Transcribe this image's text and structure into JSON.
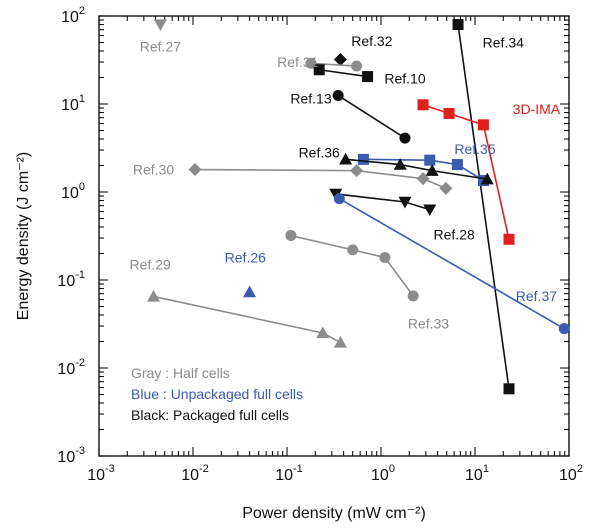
{
  "chart_data": {
    "type": "scatter",
    "title": "",
    "xlabel": "Power density (mW cm⁻²)",
    "ylabel": "Energy density (J cm⁻²)",
    "xscale": "log",
    "yscale": "log",
    "xlim": [
      0.001,
      100
    ],
    "ylim": [
      0.001,
      100
    ],
    "grid": false,
    "x_ticks": [
      {
        "value": 0.001,
        "base": "10",
        "exp": "-3"
      },
      {
        "value": 0.01,
        "base": "10",
        "exp": "-2"
      },
      {
        "value": 0.1,
        "base": "10",
        "exp": "-1"
      },
      {
        "value": 1,
        "base": "10",
        "exp": "0"
      },
      {
        "value": 10,
        "base": "10",
        "exp": "1"
      },
      {
        "value": 100,
        "base": "10",
        "exp": "2"
      }
    ],
    "y_ticks": [
      {
        "value": 0.001,
        "base": "10",
        "exp": "-3"
      },
      {
        "value": 0.01,
        "base": "10",
        "exp": "-2"
      },
      {
        "value": 0.1,
        "base": "10",
        "exp": "-1"
      },
      {
        "value": 1,
        "base": "10",
        "exp": "0"
      },
      {
        "value": 10,
        "base": "10",
        "exp": "1"
      },
      {
        "value": 100,
        "base": "10",
        "exp": "2"
      }
    ],
    "colors": {
      "gray": "#8c8c8c",
      "blue": "#3b5bb0",
      "black": "#111111",
      "red": "#e0201e"
    },
    "series": [
      {
        "label": "Ref.27",
        "color": "gray",
        "marker": "triangle-down",
        "points": [
          [
            0.0045,
            80
          ]
        ],
        "label_x": 0.0045,
        "label_y": 45,
        "label_color": "gray"
      },
      {
        "label": "Ref.32",
        "color": "black",
        "marker": "diamond",
        "points": [
          [
            0.37,
            32
          ]
        ],
        "label_x": 0.8,
        "label_y": 52,
        "label_color": "black"
      },
      {
        "label": "Ref.31",
        "color": "gray",
        "marker": "circle",
        "points": [
          [
            0.18,
            29
          ],
          [
            0.55,
            27
          ]
        ],
        "label_x": 0.13,
        "label_y": 30,
        "label_color": "gray"
      },
      {
        "label": "Ref.10",
        "color": "black",
        "marker": "square",
        "points": [
          [
            0.22,
            24.5
          ],
          [
            0.72,
            20.5
          ]
        ],
        "label_x": 1.8,
        "label_y": 19.5,
        "label_color": "black"
      },
      {
        "label": "Ref.13",
        "color": "black",
        "marker": "circle",
        "points": [
          [
            0.35,
            12.5
          ],
          [
            1.8,
            4.1
          ]
        ],
        "label_x": 0.18,
        "label_y": 11.5,
        "label_color": "black"
      },
      {
        "label": "Ref.34",
        "color": "black",
        "marker": "square",
        "points": [
          [
            6.6,
            80
          ],
          [
            23,
            0.0058
          ]
        ],
        "label_x": 20,
        "label_y": 50,
        "label_color": "black"
      },
      {
        "label": "3D-IMA",
        "color": "red",
        "marker": "square",
        "points": [
          [
            2.8,
            9.8
          ],
          [
            5.3,
            7.8
          ],
          [
            12.3,
            5.8
          ],
          [
            23,
            0.29
          ]
        ],
        "label_x": 45,
        "label_y": 8.8,
        "label_color": "red"
      },
      {
        "label": "Ref.35",
        "color": "blue",
        "marker": "square",
        "points": [
          [
            0.65,
            2.35
          ],
          [
            3.3,
            2.3
          ],
          [
            6.5,
            2.05
          ],
          [
            12.3,
            1.35
          ]
        ],
        "label_x": 10,
        "label_y": 3.1,
        "label_color": "blue"
      },
      {
        "label": "Ref.36",
        "color": "black",
        "marker": "triangle",
        "points": [
          [
            0.42,
            2.35
          ],
          [
            1.6,
            2.05
          ],
          [
            3.5,
            1.75
          ],
          [
            13.5,
            1.4
          ]
        ],
        "label_x": 0.22,
        "label_y": 2.8,
        "label_color": "black"
      },
      {
        "label": "Ref.30",
        "color": "gray",
        "marker": "diamond",
        "points": [
          [
            0.0105,
            1.8
          ],
          [
            0.55,
            1.75
          ],
          [
            2.8,
            1.42
          ],
          [
            4.9,
            1.1
          ]
        ],
        "label_x": 0.0038,
        "label_y": 1.8,
        "label_color": "gray"
      },
      {
        "label": "Ref.28",
        "color": "black",
        "marker": "triangle-down",
        "points": [
          [
            0.33,
            0.95
          ],
          [
            1.8,
            0.77
          ],
          [
            3.3,
            0.63
          ]
        ],
        "label_x": 6,
        "label_y": 0.33,
        "label_color": "black"
      },
      {
        "label": "Ref.37",
        "color": "blue",
        "marker": "circle",
        "points": [
          [
            0.36,
            0.84
          ],
          [
            89,
            0.028
          ]
        ],
        "label_x": 45,
        "label_y": 0.066,
        "label_color": "blue"
      },
      {
        "label": "Ref.33",
        "color": "gray",
        "marker": "circle",
        "points": [
          [
            0.11,
            0.32
          ],
          [
            0.5,
            0.22
          ],
          [
            1.1,
            0.18
          ],
          [
            2.2,
            0.066
          ]
        ],
        "label_x": 3.2,
        "label_y": 0.032,
        "label_color": "gray"
      },
      {
        "label": "Ref.26",
        "color": "blue",
        "marker": "triangle",
        "points": [
          [
            0.04,
            0.073
          ]
        ],
        "label_x": 0.036,
        "label_y": 0.18,
        "label_color": "blue"
      },
      {
        "label": "Ref.29",
        "color": "gray",
        "marker": "triangle",
        "points": [
          [
            0.0038,
            0.065
          ],
          [
            0.24,
            0.025
          ],
          [
            0.37,
            0.0195
          ]
        ],
        "label_x": 0.0035,
        "label_y": 0.15,
        "label_color": "gray"
      }
    ]
  },
  "legend": {
    "position": "bottom-left",
    "items": [
      {
        "text": "Gray  : Half cells",
        "color": "gray"
      },
      {
        "text": "Blue  : Unpackaged full cells",
        "color": "blue"
      },
      {
        "text": "Black: Packaged full cells",
        "color": "black"
      }
    ]
  }
}
